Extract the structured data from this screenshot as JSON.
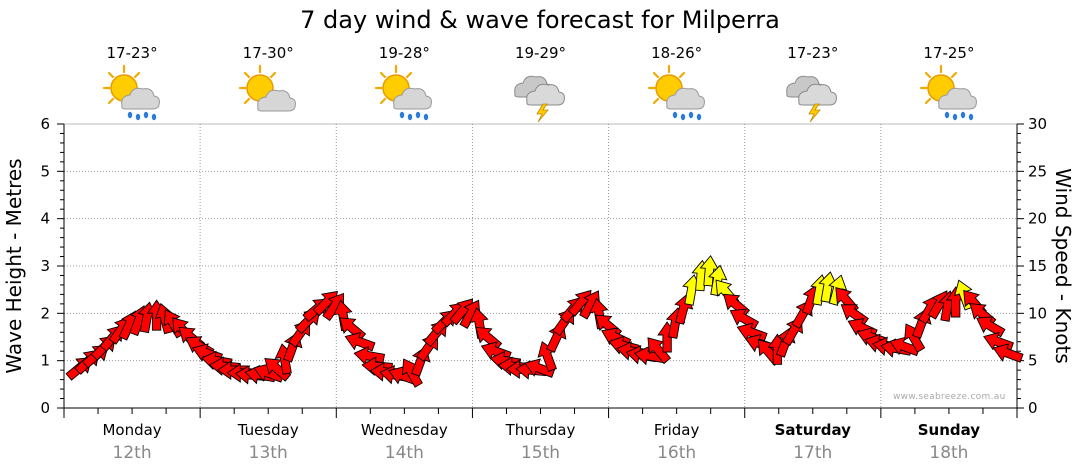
{
  "page": {
    "title": "7 day wind & wave forecast for Milperra",
    "watermark": "www.seabreeze.com.au"
  },
  "days": [
    {
      "name": "Monday",
      "date": "12th",
      "temp": "17-23°",
      "icon": "sun-cloud-rain-icon",
      "bold": false
    },
    {
      "name": "Tuesday",
      "date": "13th",
      "temp": "17-30°",
      "icon": "sun-cloud-icon",
      "bold": false
    },
    {
      "name": "Wednesday",
      "date": "14th",
      "temp": "19-28°",
      "icon": "sun-cloud-rain-icon",
      "bold": false
    },
    {
      "name": "Thursday",
      "date": "15th",
      "temp": "19-29°",
      "icon": "storm-cloud-icon",
      "bold": false
    },
    {
      "name": "Friday",
      "date": "16th",
      "temp": "18-26°",
      "icon": "sun-cloud-rain-icon",
      "bold": false
    },
    {
      "name": "Saturday",
      "date": "17th",
      "temp": "17-23°",
      "icon": "storm-cloud-icon",
      "bold": true
    },
    {
      "name": "Sunday",
      "date": "18th",
      "temp": "17-25°",
      "icon": "sun-cloud-rain-icon",
      "bold": true
    }
  ],
  "colors": {
    "arrow_normal": "#ff0000",
    "arrow_strong": "#ffff00",
    "grid": "#999999",
    "date_text": "#888888"
  },
  "chart_data": {
    "type": "scatter",
    "title": "7 day wind & wave forecast for Milperra",
    "xlabel": "",
    "ylabel_left": "Wave Height - Metres",
    "ylabel_right": "Wind Speed - Knots",
    "y_left_range": [
      0,
      6
    ],
    "y_left_ticks": [
      "0",
      "1",
      "2",
      "3",
      "4",
      "5",
      "6"
    ],
    "y_right_range": [
      0,
      30
    ],
    "y_right_ticks": [
      "0",
      "5",
      "10",
      "15",
      "20",
      "25",
      "30"
    ],
    "x_unit": "days from Monday 00:00",
    "x_range": [
      0,
      7
    ],
    "grid": true,
    "legend": "none",
    "series": [
      {
        "name": "Wind speed (knots) with direction",
        "points": [
          {
            "t": 0.12,
            "knots": 4.3,
            "dir": 230
          },
          {
            "t": 0.18,
            "knots": 5.0,
            "dir": 225
          },
          {
            "t": 0.24,
            "knots": 5.6,
            "dir": 230
          },
          {
            "t": 0.3,
            "knots": 6.5,
            "dir": 225
          },
          {
            "t": 0.36,
            "knots": 7.5,
            "dir": 220
          },
          {
            "t": 0.42,
            "knots": 8.3,
            "dir": 215
          },
          {
            "t": 0.48,
            "knots": 8.8,
            "dir": 205
          },
          {
            "t": 0.55,
            "knots": 9.3,
            "dir": 200
          },
          {
            "t": 0.61,
            "knots": 9.6,
            "dir": 190
          },
          {
            "t": 0.68,
            "knots": 9.8,
            "dir": 180
          },
          {
            "t": 0.74,
            "knots": 9.5,
            "dir": 165
          },
          {
            "t": 0.8,
            "knots": 9.0,
            "dir": 150
          },
          {
            "t": 0.87,
            "knots": 8.3,
            "dir": 140
          },
          {
            "t": 0.93,
            "knots": 7.5,
            "dir": 130
          },
          {
            "t": 0.99,
            "knots": 6.6,
            "dir": 120
          },
          {
            "t": 1.05,
            "knots": 5.8,
            "dir": 110
          },
          {
            "t": 1.12,
            "knots": 5.0,
            "dir": 100
          },
          {
            "t": 1.18,
            "knots": 4.4,
            "dir": 95
          },
          {
            "t": 1.24,
            "knots": 4.0,
            "dir": 90
          },
          {
            "t": 1.31,
            "knots": 3.7,
            "dir": 90
          },
          {
            "t": 1.37,
            "knots": 3.5,
            "dir": 95
          },
          {
            "t": 1.44,
            "knots": 3.5,
            "dir": 100
          },
          {
            "t": 1.5,
            "knots": 3.7,
            "dir": 110
          },
          {
            "t": 1.56,
            "knots": 4.2,
            "dir": 130
          },
          {
            "t": 1.62,
            "knots": 5.2,
            "dir": 170
          },
          {
            "t": 1.68,
            "knots": 6.5,
            "dir": 200
          },
          {
            "t": 1.74,
            "knots": 8.0,
            "dir": 215
          },
          {
            "t": 1.8,
            "knots": 9.3,
            "dir": 225
          },
          {
            "t": 1.86,
            "knots": 10.5,
            "dir": 230
          },
          {
            "t": 1.93,
            "knots": 11.2,
            "dir": 225
          },
          {
            "t": 1.99,
            "knots": 10.8,
            "dir": 215
          },
          {
            "t": 2.05,
            "knots": 9.8,
            "dir": 170
          },
          {
            "t": 2.11,
            "knots": 8.5,
            "dir": 130
          },
          {
            "t": 2.17,
            "knots": 7.0,
            "dir": 110
          },
          {
            "t": 2.24,
            "knots": 5.5,
            "dir": 100
          },
          {
            "t": 2.3,
            "knots": 4.4,
            "dir": 95
          },
          {
            "t": 2.36,
            "knots": 3.8,
            "dir": 95
          },
          {
            "t": 2.43,
            "knots": 3.5,
            "dir": 100
          },
          {
            "t": 2.49,
            "knots": 3.4,
            "dir": 110
          },
          {
            "t": 2.55,
            "knots": 3.8,
            "dir": 150
          },
          {
            "t": 2.62,
            "knots": 5.0,
            "dir": 200
          },
          {
            "t": 2.68,
            "knots": 6.5,
            "dir": 215
          },
          {
            "t": 2.74,
            "knots": 8.0,
            "dir": 220
          },
          {
            "t": 2.8,
            "knots": 9.2,
            "dir": 225
          },
          {
            "t": 2.87,
            "knots": 10.0,
            "dir": 225
          },
          {
            "t": 2.93,
            "knots": 10.3,
            "dir": 220
          },
          {
            "t": 2.99,
            "knots": 10.0,
            "dir": 210
          },
          {
            "t": 3.05,
            "knots": 9.0,
            "dir": 170
          },
          {
            "t": 3.11,
            "knots": 7.5,
            "dir": 130
          },
          {
            "t": 3.17,
            "knots": 6.0,
            "dir": 110
          },
          {
            "t": 3.24,
            "knots": 5.0,
            "dir": 100
          },
          {
            "t": 3.3,
            "knots": 4.4,
            "dir": 95
          },
          {
            "t": 3.36,
            "knots": 4.1,
            "dir": 90
          },
          {
            "t": 3.43,
            "knots": 4.0,
            "dir": 95
          },
          {
            "t": 3.49,
            "knots": 4.2,
            "dir": 110
          },
          {
            "t": 3.55,
            "knots": 5.5,
            "dir": 160
          },
          {
            "t": 3.62,
            "knots": 7.5,
            "dir": 205
          },
          {
            "t": 3.68,
            "knots": 9.2,
            "dir": 215
          },
          {
            "t": 3.74,
            "knots": 10.5,
            "dir": 220
          },
          {
            "t": 3.8,
            "knots": 11.2,
            "dir": 220
          },
          {
            "t": 3.87,
            "knots": 11.0,
            "dir": 210
          },
          {
            "t": 3.93,
            "knots": 10.0,
            "dir": 170
          },
          {
            "t": 3.99,
            "knots": 8.8,
            "dir": 130
          },
          {
            "t": 4.05,
            "knots": 7.5,
            "dir": 115
          },
          {
            "t": 4.11,
            "knots": 6.6,
            "dir": 105
          },
          {
            "t": 4.17,
            "knots": 6.0,
            "dir": 100
          },
          {
            "t": 4.24,
            "knots": 5.6,
            "dir": 100
          },
          {
            "t": 4.3,
            "knots": 5.5,
            "dir": 100
          },
          {
            "t": 4.36,
            "knots": 6.2,
            "dir": 140
          },
          {
            "t": 4.43,
            "knots": 7.5,
            "dir": 180
          },
          {
            "t": 4.49,
            "knots": 9.0,
            "dir": 190
          },
          {
            "t": 4.55,
            "knots": 10.5,
            "dir": 195
          },
          {
            "t": 4.61,
            "knots": 12.5,
            "dir": 190
          },
          {
            "t": 4.68,
            "knots": 14.0,
            "dir": 185
          },
          {
            "t": 4.74,
            "knots": 14.5,
            "dir": 185
          },
          {
            "t": 4.8,
            "knots": 13.5,
            "dir": 190
          },
          {
            "t": 4.86,
            "knots": 12.3,
            "dir": 140
          },
          {
            "t": 4.93,
            "knots": 11.0,
            "dir": 130
          },
          {
            "t": 4.99,
            "knots": 9.5,
            "dir": 120
          },
          {
            "t": 5.05,
            "knots": 8.0,
            "dir": 110
          },
          {
            "t": 5.11,
            "knots": 6.8,
            "dir": 110
          },
          {
            "t": 5.17,
            "knots": 6.0,
            "dir": 140
          },
          {
            "t": 5.24,
            "knots": 6.2,
            "dir": 180
          },
          {
            "t": 5.3,
            "knots": 7.0,
            "dir": 200
          },
          {
            "t": 5.36,
            "knots": 8.2,
            "dir": 210
          },
          {
            "t": 5.43,
            "knots": 10.0,
            "dir": 210
          },
          {
            "t": 5.49,
            "knots": 11.5,
            "dir": 200
          },
          {
            "t": 5.55,
            "knots": 12.5,
            "dir": 190
          },
          {
            "t": 5.61,
            "knots": 12.8,
            "dir": 190
          },
          {
            "t": 5.68,
            "knots": 12.5,
            "dir": 195
          },
          {
            "t": 5.74,
            "knots": 11.5,
            "dir": 140
          },
          {
            "t": 5.8,
            "knots": 10.0,
            "dir": 125
          },
          {
            "t": 5.86,
            "knots": 8.5,
            "dir": 115
          },
          {
            "t": 5.93,
            "knots": 7.5,
            "dir": 110
          },
          {
            "t": 5.99,
            "knots": 6.8,
            "dir": 105
          },
          {
            "t": 6.05,
            "knots": 6.5,
            "dir": 100
          },
          {
            "t": 6.11,
            "knots": 6.3,
            "dir": 100
          },
          {
            "t": 6.17,
            "knots": 6.5,
            "dir": 110
          },
          {
            "t": 6.24,
            "knots": 7.5,
            "dir": 150
          },
          {
            "t": 6.3,
            "knots": 9.0,
            "dir": 200
          },
          {
            "t": 6.36,
            "knots": 10.5,
            "dir": 210
          },
          {
            "t": 6.43,
            "knots": 11.0,
            "dir": 210
          },
          {
            "t": 6.49,
            "knots": 10.8,
            "dir": 190
          },
          {
            "t": 6.55,
            "knots": 11.2,
            "dir": 180
          },
          {
            "t": 6.61,
            "knots": 12.0,
            "dir": 160
          },
          {
            "t": 6.68,
            "knots": 11.2,
            "dir": 140
          },
          {
            "t": 6.74,
            "knots": 10.0,
            "dir": 130
          },
          {
            "t": 6.8,
            "knots": 8.7,
            "dir": 120
          },
          {
            "t": 6.86,
            "knots": 7.0,
            "dir": 110
          },
          {
            "t": 6.93,
            "knots": 5.8,
            "dir": 110
          }
        ]
      }
    ]
  }
}
